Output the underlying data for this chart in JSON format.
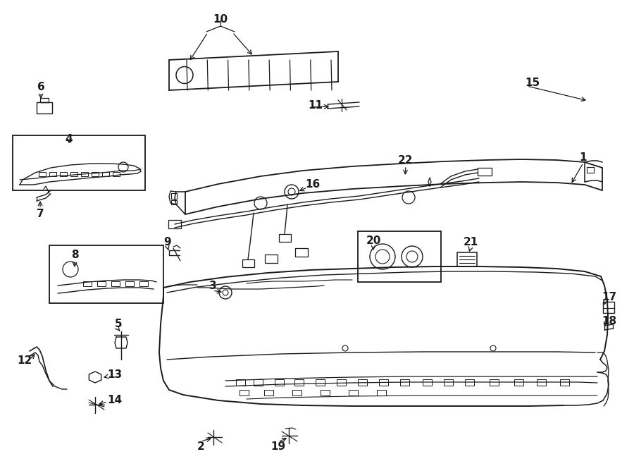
{
  "background": "#ffffff",
  "line_color": "#1a1a1a",
  "figsize": [
    9.0,
    6.61
  ],
  "dpi": 100
}
